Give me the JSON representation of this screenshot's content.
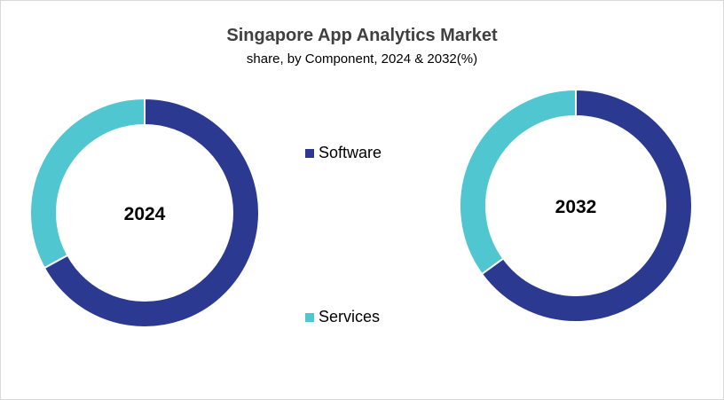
{
  "chart_data": {
    "type": "pie",
    "title": "Singapore App Analytics Market",
    "subtitle": "share, by Component, 2024 & 2032(%)",
    "categories": [
      "Software",
      "Services"
    ],
    "colors": {
      "Software": "#2b3990",
      "Services": "#4fc6d0"
    },
    "series": [
      {
        "name": "2024",
        "values": [
          67,
          33
        ]
      },
      {
        "name": "2032",
        "values": [
          65,
          35
        ]
      }
    ],
    "legend_position": "center"
  }
}
